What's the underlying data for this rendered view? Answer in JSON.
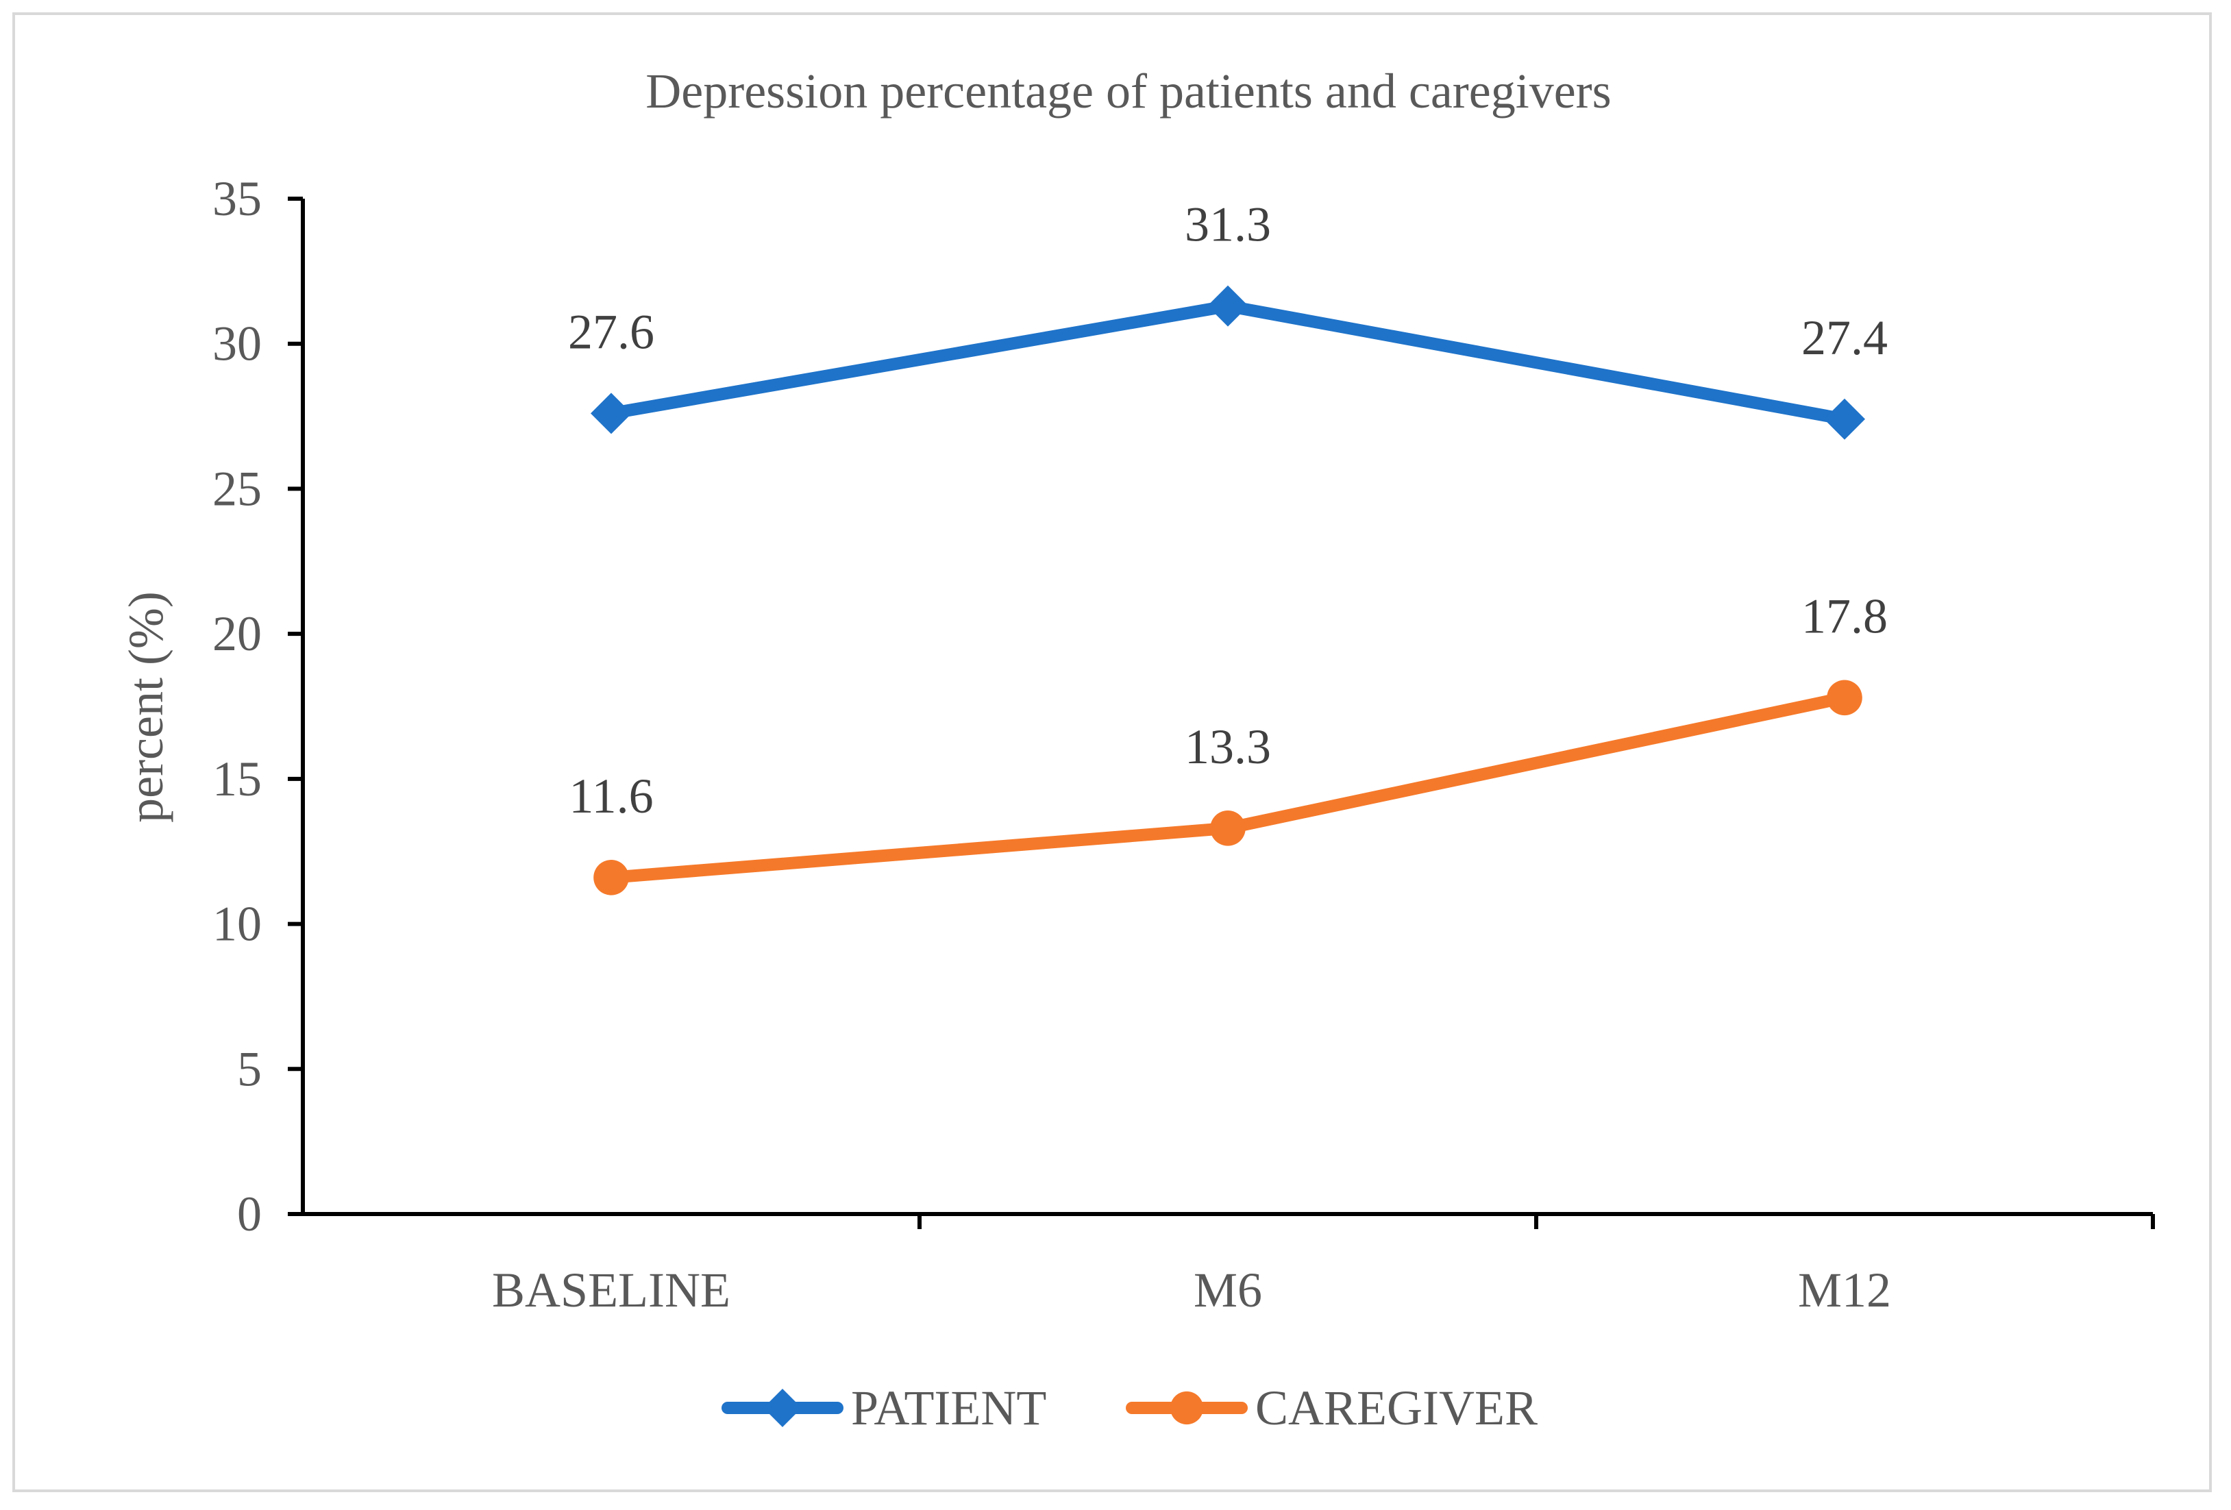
{
  "chart_data": {
    "type": "line",
    "title": "Depression percentage of patients and caregivers",
    "xlabel": "",
    "ylabel": "percent (%)",
    "categories": [
      "BASELINE",
      "M6",
      "M12"
    ],
    "ylim": [
      0,
      35
    ],
    "yticks": [
      0,
      5,
      10,
      15,
      20,
      25,
      30,
      35
    ],
    "grid": false,
    "legend": "bottom",
    "series": [
      {
        "name": "PATIENT",
        "values": [
          27.6,
          31.3,
          27.4
        ],
        "labels": [
          "27.6",
          "31.3",
          "27.4"
        ],
        "color": "#1f73c9",
        "marker": "diamond"
      },
      {
        "name": "CAREGIVER",
        "values": [
          11.6,
          13.3,
          17.8
        ],
        "labels": [
          "11.6",
          "13.3",
          "17.8"
        ],
        "color": "#f5792a",
        "marker": "circle"
      }
    ],
    "colors": {
      "axis": "#000000",
      "text": "#595959",
      "label": "#404040",
      "border": "#d9d9d9"
    }
  }
}
